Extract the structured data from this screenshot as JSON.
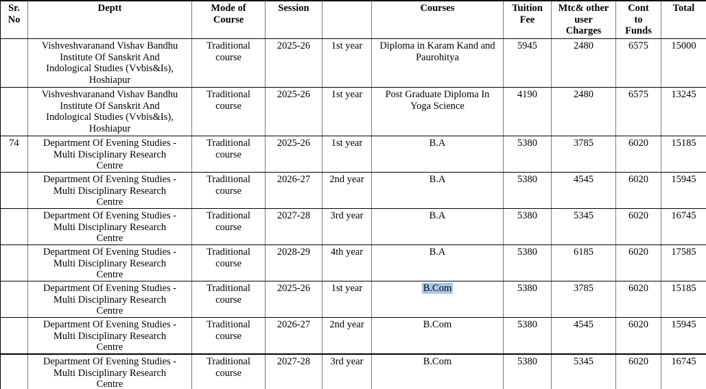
{
  "table": {
    "headers": [
      {
        "label": "Sr. No"
      },
      {
        "label": "Deptt"
      },
      {
        "label": "Mode of Course"
      },
      {
        "label": "Session"
      },
      {
        "label": ""
      },
      {
        "label": "Courses"
      },
      {
        "label": "Tuition Fee"
      },
      {
        "label": "Mtc& other user Charges"
      },
      {
        "label": "Cont to Funds"
      },
      {
        "label": "Total"
      }
    ],
    "selection_color": "#a6c7e6",
    "rows": [
      {
        "sr": "",
        "deptt": "Vishveshvaranand Vishav Bandhu Institute Of Sanskrit And Indological Studies (Vvbis&Is), Hoshiapur",
        "mode": "Traditional course",
        "session": "2025-26",
        "year": "1st year",
        "course": "Diploma in Karam Kand and Paurohitya",
        "course_selected": false,
        "tuition_fee": "5945",
        "mtc_charges": "2480",
        "cont_funds": "6575",
        "total": "15000"
      },
      {
        "sr": "",
        "deptt": "Vishveshvaranand Vishav Bandhu Institute Of Sanskrit And Indological Studies (Vvbis&Is), Hoshiapur",
        "mode": "Traditional course",
        "session": "2025-26",
        "year": "1st year",
        "course": "Post Graduate Diploma In Yoga Science",
        "course_selected": false,
        "tuition_fee": "4190",
        "mtc_charges": "2480",
        "cont_funds": "6575",
        "total": "13245"
      },
      {
        "sr": "74",
        "deptt": "Department Of Evening Studies - Multi Disciplinary Research Centre",
        "mode": "Traditional course",
        "session": "2025-26",
        "year": "1st year",
        "course": "B.A",
        "course_selected": false,
        "tuition_fee": "5380",
        "mtc_charges": "3785",
        "cont_funds": "6020",
        "total": "15185"
      },
      {
        "sr": "",
        "deptt": "Department Of Evening Studies - Multi Disciplinary Research Centre",
        "mode": "Traditional course",
        "session": "2026-27",
        "year": "2nd year",
        "course": "B.A",
        "course_selected": false,
        "tuition_fee": "5380",
        "mtc_charges": "4545",
        "cont_funds": "6020",
        "total": "15945"
      },
      {
        "sr": "",
        "deptt": "Department Of Evening Studies - Multi Disciplinary Research Centre",
        "mode": "Traditional course",
        "session": "2027-28",
        "year": "3rd year",
        "course": "B.A",
        "course_selected": false,
        "tuition_fee": "5380",
        "mtc_charges": "5345",
        "cont_funds": "6020",
        "total": "16745"
      },
      {
        "sr": "",
        "deptt": "Department Of Evening Studies - Multi Disciplinary Research Centre",
        "mode": "Traditional course",
        "session": "2028-29",
        "year": "4th year",
        "course": "B.A",
        "course_selected": false,
        "tuition_fee": "5380",
        "mtc_charges": "6185",
        "cont_funds": "6020",
        "total": "17585"
      },
      {
        "sr": "",
        "deptt": "Department Of Evening Studies - Multi Disciplinary Research Centre",
        "mode": "Traditional course",
        "session": "2025-26",
        "year": "1st year",
        "course": "B.Com",
        "course_selected": true,
        "tuition_fee": "5380",
        "mtc_charges": "3785",
        "cont_funds": "6020",
        "total": "15185"
      },
      {
        "sr": "",
        "deptt": "Department Of Evening Studies - Multi Disciplinary Research Centre",
        "mode": "Traditional course",
        "session": "2026-27",
        "year": "2nd year",
        "course": "B.Com",
        "course_selected": false,
        "tuition_fee": "5380",
        "mtc_charges": "4545",
        "cont_funds": "6020",
        "total": "15945"
      },
      {
        "sr": "",
        "deptt": "Department Of Evening Studies - Multi Disciplinary Research Centre",
        "mode": "Traditional course",
        "session": "2027-28",
        "year": "3rd year",
        "course": "B.Com",
        "course_selected": false,
        "tuition_fee": "5380",
        "mtc_charges": "5345",
        "cont_funds": "6020",
        "total": "16745"
      }
    ]
  }
}
